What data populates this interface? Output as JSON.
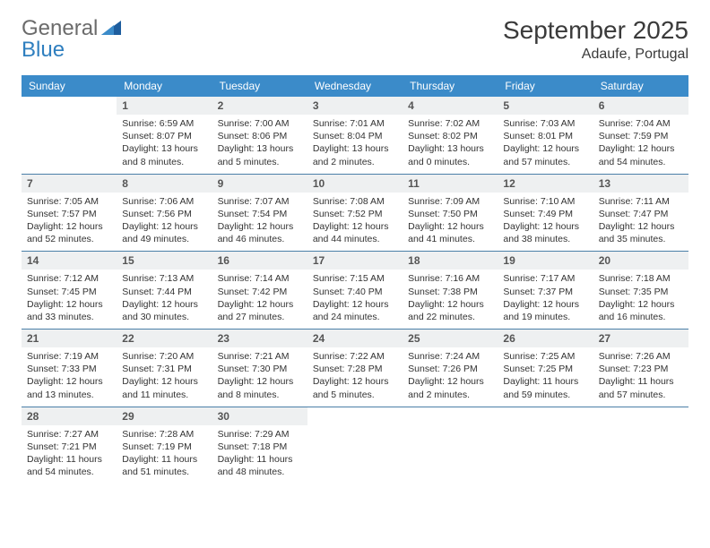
{
  "logo": {
    "general": "General",
    "blue": "Blue"
  },
  "title": "September 2025",
  "location": "Adaufe, Portugal",
  "colors": {
    "header_bg": "#3b8bc9",
    "daynum_bg": "#eef0f1",
    "week_border": "#4a7fa8",
    "logo_gray": "#6b6b6b",
    "logo_blue": "#2f7fbf",
    "tri_fill": "#1e5e9e"
  },
  "fonts": {
    "month_title_pt": 28,
    "location_pt": 16,
    "dow_pt": 12,
    "daynum_pt": 12,
    "body_pt": 10.5
  },
  "days_of_week": [
    "Sunday",
    "Monday",
    "Tuesday",
    "Wednesday",
    "Thursday",
    "Friday",
    "Saturday"
  ],
  "weeks": [
    [
      null,
      {
        "n": "1",
        "sunrise": "6:59 AM",
        "sunset": "8:07 PM",
        "dl1": "Daylight: 13 hours",
        "dl2": "and 8 minutes."
      },
      {
        "n": "2",
        "sunrise": "7:00 AM",
        "sunset": "8:06 PM",
        "dl1": "Daylight: 13 hours",
        "dl2": "and 5 minutes."
      },
      {
        "n": "3",
        "sunrise": "7:01 AM",
        "sunset": "8:04 PM",
        "dl1": "Daylight: 13 hours",
        "dl2": "and 2 minutes."
      },
      {
        "n": "4",
        "sunrise": "7:02 AM",
        "sunset": "8:02 PM",
        "dl1": "Daylight: 13 hours",
        "dl2": "and 0 minutes."
      },
      {
        "n": "5",
        "sunrise": "7:03 AM",
        "sunset": "8:01 PM",
        "dl1": "Daylight: 12 hours",
        "dl2": "and 57 minutes."
      },
      {
        "n": "6",
        "sunrise": "7:04 AM",
        "sunset": "7:59 PM",
        "dl1": "Daylight: 12 hours",
        "dl2": "and 54 minutes."
      }
    ],
    [
      {
        "n": "7",
        "sunrise": "7:05 AM",
        "sunset": "7:57 PM",
        "dl1": "Daylight: 12 hours",
        "dl2": "and 52 minutes."
      },
      {
        "n": "8",
        "sunrise": "7:06 AM",
        "sunset": "7:56 PM",
        "dl1": "Daylight: 12 hours",
        "dl2": "and 49 minutes."
      },
      {
        "n": "9",
        "sunrise": "7:07 AM",
        "sunset": "7:54 PM",
        "dl1": "Daylight: 12 hours",
        "dl2": "and 46 minutes."
      },
      {
        "n": "10",
        "sunrise": "7:08 AM",
        "sunset": "7:52 PM",
        "dl1": "Daylight: 12 hours",
        "dl2": "and 44 minutes."
      },
      {
        "n": "11",
        "sunrise": "7:09 AM",
        "sunset": "7:50 PM",
        "dl1": "Daylight: 12 hours",
        "dl2": "and 41 minutes."
      },
      {
        "n": "12",
        "sunrise": "7:10 AM",
        "sunset": "7:49 PM",
        "dl1": "Daylight: 12 hours",
        "dl2": "and 38 minutes."
      },
      {
        "n": "13",
        "sunrise": "7:11 AM",
        "sunset": "7:47 PM",
        "dl1": "Daylight: 12 hours",
        "dl2": "and 35 minutes."
      }
    ],
    [
      {
        "n": "14",
        "sunrise": "7:12 AM",
        "sunset": "7:45 PM",
        "dl1": "Daylight: 12 hours",
        "dl2": "and 33 minutes."
      },
      {
        "n": "15",
        "sunrise": "7:13 AM",
        "sunset": "7:44 PM",
        "dl1": "Daylight: 12 hours",
        "dl2": "and 30 minutes."
      },
      {
        "n": "16",
        "sunrise": "7:14 AM",
        "sunset": "7:42 PM",
        "dl1": "Daylight: 12 hours",
        "dl2": "and 27 minutes."
      },
      {
        "n": "17",
        "sunrise": "7:15 AM",
        "sunset": "7:40 PM",
        "dl1": "Daylight: 12 hours",
        "dl2": "and 24 minutes."
      },
      {
        "n": "18",
        "sunrise": "7:16 AM",
        "sunset": "7:38 PM",
        "dl1": "Daylight: 12 hours",
        "dl2": "and 22 minutes."
      },
      {
        "n": "19",
        "sunrise": "7:17 AM",
        "sunset": "7:37 PM",
        "dl1": "Daylight: 12 hours",
        "dl2": "and 19 minutes."
      },
      {
        "n": "20",
        "sunrise": "7:18 AM",
        "sunset": "7:35 PM",
        "dl1": "Daylight: 12 hours",
        "dl2": "and 16 minutes."
      }
    ],
    [
      {
        "n": "21",
        "sunrise": "7:19 AM",
        "sunset": "7:33 PM",
        "dl1": "Daylight: 12 hours",
        "dl2": "and 13 minutes."
      },
      {
        "n": "22",
        "sunrise": "7:20 AM",
        "sunset": "7:31 PM",
        "dl1": "Daylight: 12 hours",
        "dl2": "and 11 minutes."
      },
      {
        "n": "23",
        "sunrise": "7:21 AM",
        "sunset": "7:30 PM",
        "dl1": "Daylight: 12 hours",
        "dl2": "and 8 minutes."
      },
      {
        "n": "24",
        "sunrise": "7:22 AM",
        "sunset": "7:28 PM",
        "dl1": "Daylight: 12 hours",
        "dl2": "and 5 minutes."
      },
      {
        "n": "25",
        "sunrise": "7:24 AM",
        "sunset": "7:26 PM",
        "dl1": "Daylight: 12 hours",
        "dl2": "and 2 minutes."
      },
      {
        "n": "26",
        "sunrise": "7:25 AM",
        "sunset": "7:25 PM",
        "dl1": "Daylight: 11 hours",
        "dl2": "and 59 minutes."
      },
      {
        "n": "27",
        "sunrise": "7:26 AM",
        "sunset": "7:23 PM",
        "dl1": "Daylight: 11 hours",
        "dl2": "and 57 minutes."
      }
    ],
    [
      {
        "n": "28",
        "sunrise": "7:27 AM",
        "sunset": "7:21 PM",
        "dl1": "Daylight: 11 hours",
        "dl2": "and 54 minutes."
      },
      {
        "n": "29",
        "sunrise": "7:28 AM",
        "sunset": "7:19 PM",
        "dl1": "Daylight: 11 hours",
        "dl2": "and 51 minutes."
      },
      {
        "n": "30",
        "sunrise": "7:29 AM",
        "sunset": "7:18 PM",
        "dl1": "Daylight: 11 hours",
        "dl2": "and 48 minutes."
      },
      null,
      null,
      null,
      null
    ]
  ],
  "labels": {
    "sunrise": "Sunrise:",
    "sunset": "Sunset:"
  }
}
